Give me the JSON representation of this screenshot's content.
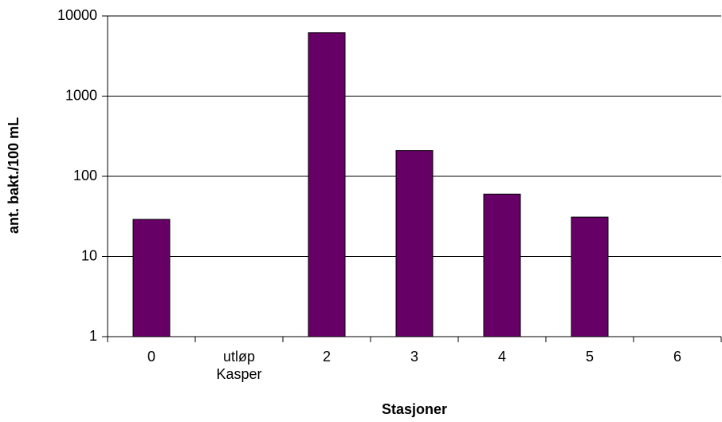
{
  "chart_data": {
    "type": "bar",
    "categories": [
      "0",
      "utløp Kasper",
      "2",
      "3",
      "4",
      "5",
      "6"
    ],
    "values": [
      29,
      null,
      6200,
      210,
      60,
      31,
      null
    ],
    "color": "#660066",
    "log_scale": true,
    "ylim": [
      1,
      10000
    ],
    "yticks": [
      1,
      10,
      100,
      1000,
      10000
    ],
    "grid": true,
    "y_label": "ant. bakt./100 mL",
    "x_label": "Stasjoner"
  }
}
